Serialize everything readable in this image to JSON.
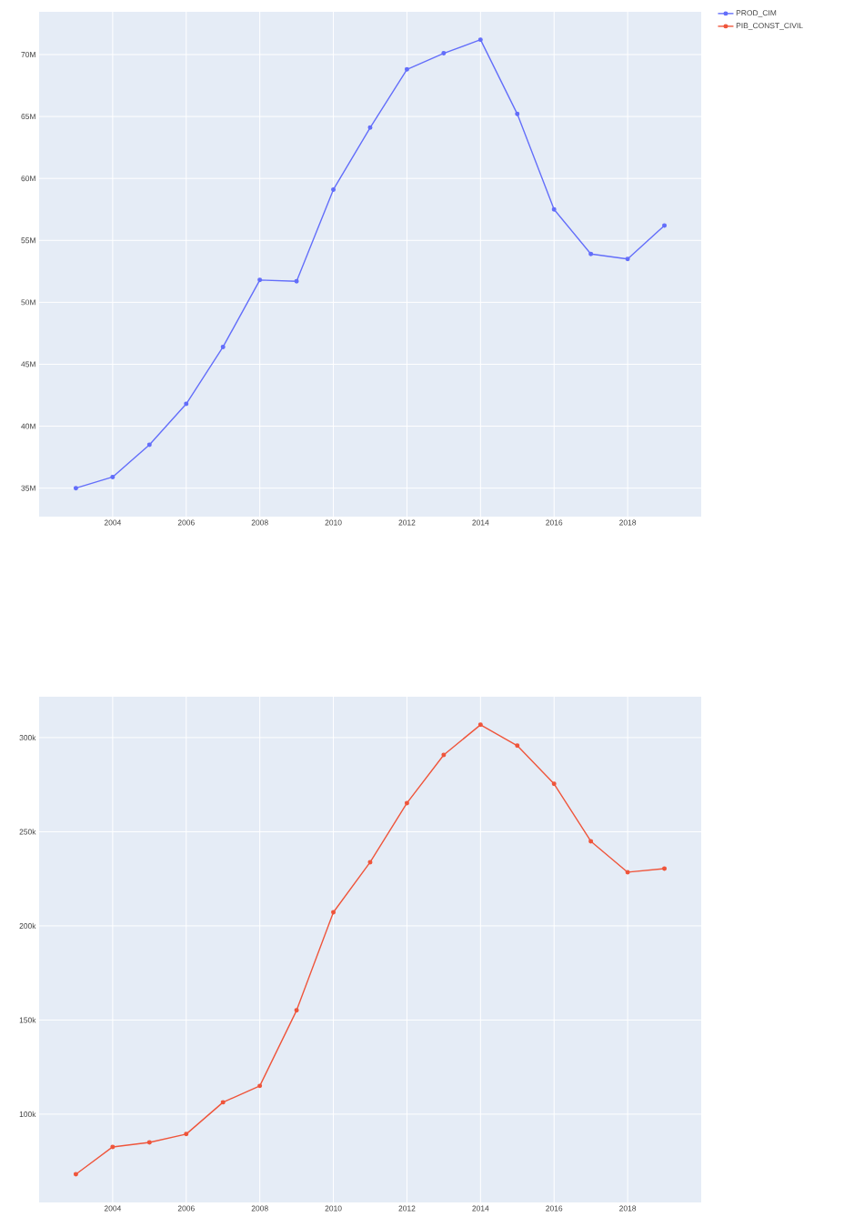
{
  "chart_data": [
    {
      "type": "line",
      "x": [
        2003,
        2004,
        2005,
        2006,
        2007,
        2008,
        2009,
        2010,
        2011,
        2012,
        2013,
        2014,
        2015,
        2016,
        2017,
        2018,
        2019
      ],
      "series": [
        {
          "name": "PROD_CIM",
          "color": "#636efa",
          "values": [
            35000000,
            35900000,
            38500000,
            41800000,
            46400000,
            51800000,
            51700000,
            59100000,
            64100000,
            68800000,
            70100000,
            71200000,
            65200000,
            57500000,
            53900000,
            53500000,
            56200000
          ]
        }
      ],
      "xlim": [
        2002,
        2020
      ],
      "xticks": [
        2004,
        2006,
        2008,
        2010,
        2012,
        2014,
        2016,
        2018
      ],
      "ylim": [
        32700000,
        73450000
      ],
      "yticks": [
        {
          "value": 35000000,
          "label": "35M"
        },
        {
          "value": 40000000,
          "label": "40M"
        },
        {
          "value": 45000000,
          "label": "45M"
        },
        {
          "value": 50000000,
          "label": "50M"
        },
        {
          "value": 55000000,
          "label": "55M"
        },
        {
          "value": 60000000,
          "label": "60M"
        },
        {
          "value": 65000000,
          "label": "65M"
        },
        {
          "value": 70000000,
          "label": "70M"
        }
      ],
      "grid": true,
      "legend": "top right",
      "marker": "circle",
      "line_style": "solid"
    },
    {
      "type": "line",
      "x": [
        2003,
        2004,
        2005,
        2006,
        2007,
        2008,
        2009,
        2010,
        2011,
        2012,
        2013,
        2014,
        2015,
        2016,
        2017,
        2018,
        2019
      ],
      "series": [
        {
          "name": "PIB_CONST_CIVIL",
          "color": "#ef553b",
          "values": [
            68100,
            82600,
            85000,
            89400,
            106300,
            115000,
            155100,
            207200,
            233800,
            265200,
            290800,
            306800,
            295700,
            275400,
            244900,
            228500,
            230400
          ]
        }
      ],
      "xlim": [
        2002,
        2020
      ],
      "xticks": [
        2004,
        2006,
        2008,
        2010,
        2012,
        2014,
        2016,
        2018
      ],
      "ylim": [
        53100,
        321700
      ],
      "yticks": [
        {
          "value": 100000,
          "label": "100k"
        },
        {
          "value": 150000,
          "label": "150k"
        },
        {
          "value": 200000,
          "label": "200k"
        },
        {
          "value": 250000,
          "label": "250k"
        },
        {
          "value": 300000,
          "label": "300k"
        }
      ],
      "grid": true,
      "legend": "top right",
      "marker": "circle",
      "line_style": "solid"
    }
  ]
}
